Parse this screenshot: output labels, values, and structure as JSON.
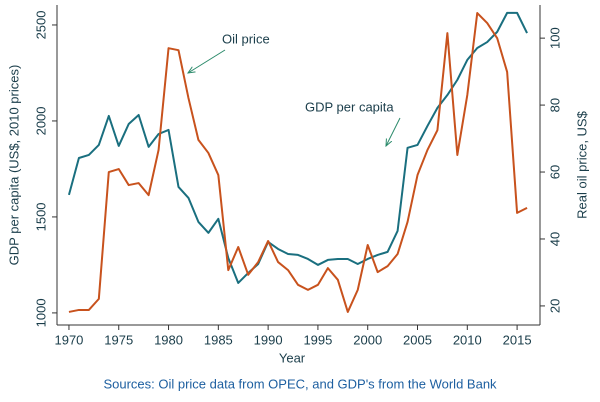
{
  "chart_data": {
    "type": "line",
    "x_label": "Year",
    "y_label": "GDP per capita (US$, 2010 prices)",
    "y2_label": "Real oil price, US$",
    "source": "Sources: Oil price data from OPEC, and GDP's from the World Bank",
    "annotations": [
      "Oil  price",
      "GDP per capita"
    ],
    "x": [
      1970,
      1971,
      1972,
      1973,
      1974,
      1975,
      1976,
      1977,
      1978,
      1979,
      1980,
      1981,
      1982,
      1983,
      1984,
      1985,
      1986,
      1987,
      1988,
      1989,
      1990,
      1991,
      1992,
      1993,
      1994,
      1995,
      1996,
      1997,
      1998,
      1999,
      2000,
      2001,
      2002,
      2003,
      2004,
      2005,
      2006,
      2007,
      2008,
      2009,
      2010,
      2011,
      2012,
      2013,
      2014,
      2015,
      2016
    ],
    "series": [
      {
        "name": "GDP per capita",
        "color": "#1a6f7f",
        "axis": "y",
        "values": [
          1615,
          1807,
          1823,
          1875,
          2026,
          1870,
          1984,
          2031,
          1865,
          1932,
          1953,
          1656,
          1599,
          1474,
          1417,
          1490,
          1286,
          1156,
          1208,
          1255,
          1370,
          1333,
          1307,
          1302,
          1281,
          1250,
          1276,
          1281,
          1281,
          1255,
          1281,
          1302,
          1318,
          1427,
          1860,
          1875,
          1974,
          2068,
          2135,
          2214,
          2318,
          2380,
          2411,
          2464,
          2563,
          2563,
          2458
        ]
      },
      {
        "name": "Oil price",
        "color": "#c8521d",
        "axis": "y2",
        "values": [
          18.2,
          18.8,
          18.8,
          22.1,
          60,
          60.9,
          56.1,
          56.7,
          53.1,
          66.6,
          97,
          96.4,
          82.1,
          69.6,
          65.7,
          59.1,
          30.7,
          37.6,
          29.3,
          33.1,
          39.4,
          33.1,
          30.7,
          26.3,
          24.8,
          26.3,
          31.3,
          27.8,
          18.2,
          24.8,
          38.2,
          30.1,
          31.9,
          35.5,
          45.1,
          59.1,
          66.6,
          72.5,
          101.5,
          65.1,
          83,
          107.5,
          104.5,
          100,
          89.9,
          47.8,
          49.3
        ]
      }
    ],
    "xlim": [
      1968.8,
      2017.3
    ],
    "xticks": [
      1970,
      1975,
      1980,
      1985,
      1990,
      1995,
      2000,
      2005,
      2010,
      2015
    ],
    "ylim": [
      937,
      2604
    ],
    "yticks": [
      1000,
      1500,
      2000,
      2500
    ],
    "y2lim": [
      14.3,
      109.9
    ],
    "y2ticks": [
      20,
      40,
      60,
      80,
      100
    ],
    "grid": false
  }
}
